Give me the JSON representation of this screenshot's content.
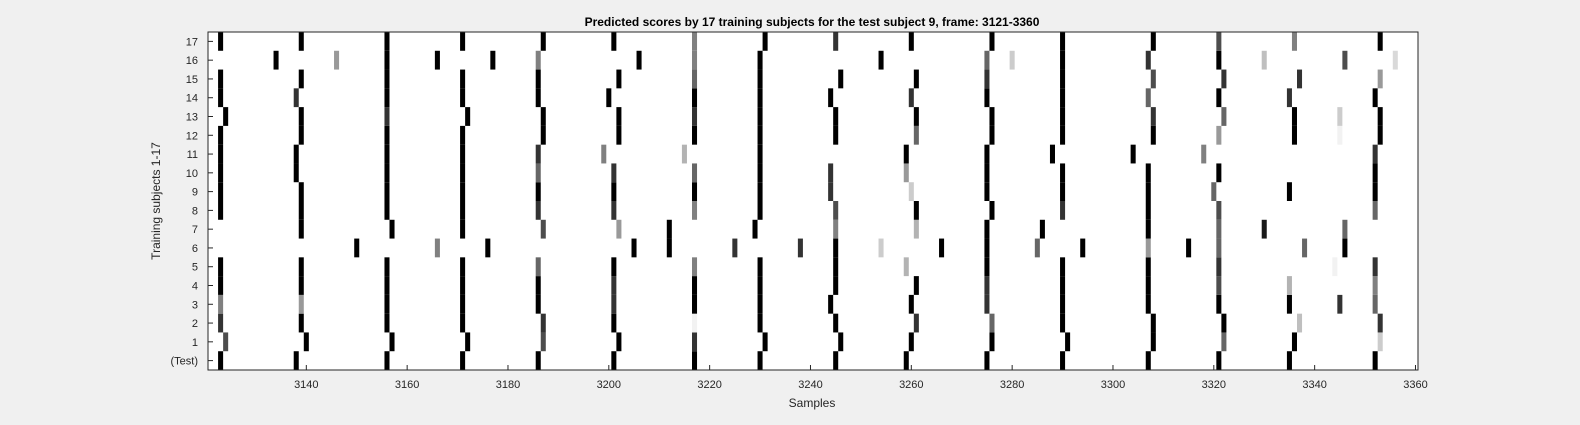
{
  "chart_data": {
    "type": "heatmap",
    "title": "Predicted scores by 17 training subjects for the test subject 9, frame: 3121-3360",
    "xlabel": "Samples",
    "ylabel": "Training subjects 1-17",
    "xlim": [
      3121,
      3360
    ],
    "xticks": [
      3140,
      3160,
      3180,
      3200,
      3220,
      3240,
      3260,
      3280,
      3300,
      3320,
      3340,
      3360
    ],
    "rows": [
      "(Test)",
      "1",
      "2",
      "3",
      "4",
      "5",
      "6",
      "7",
      "8",
      "9",
      "10",
      "11",
      "12",
      "13",
      "14",
      "15",
      "16",
      "17"
    ],
    "colormap": "gray (1 = black, 0 = white)",
    "grid": false,
    "cells": [
      {
        "row": "(Test)",
        "marks": [
          [
            3123,
            1
          ],
          [
            3138,
            1
          ],
          [
            3156,
            1
          ],
          [
            3171,
            1
          ],
          [
            3186,
            1
          ],
          [
            3201,
            1
          ],
          [
            3217,
            1
          ],
          [
            3230,
            1
          ],
          [
            3245,
            1
          ],
          [
            3259,
            1
          ],
          [
            3275,
            1
          ],
          [
            3290,
            1
          ],
          [
            3307,
            1
          ],
          [
            3321,
            1
          ],
          [
            3335,
            1
          ],
          [
            3352,
            1
          ]
        ]
      },
      {
        "row": "1",
        "marks": [
          [
            3124,
            0.7
          ],
          [
            3140,
            1
          ],
          [
            3157,
            1
          ],
          [
            3172,
            1
          ],
          [
            3187,
            0.7
          ],
          [
            3202,
            1
          ],
          [
            3217,
            0.8
          ],
          [
            3231,
            1
          ],
          [
            3246,
            1
          ],
          [
            3260,
            1
          ],
          [
            3276,
            1
          ],
          [
            3291,
            1
          ],
          [
            3308,
            1
          ],
          [
            3322,
            0.6
          ],
          [
            3336,
            1
          ],
          [
            3353,
            0.2
          ]
        ]
      },
      {
        "row": "2",
        "marks": [
          [
            3123,
            0.8
          ],
          [
            3139,
            1
          ],
          [
            3156,
            1
          ],
          [
            3171,
            1
          ],
          [
            3187,
            0.8
          ],
          [
            3201,
            1
          ],
          [
            3217,
            0.05
          ],
          [
            3230,
            1
          ],
          [
            3245,
            1
          ],
          [
            3261,
            0.8
          ],
          [
            3276,
            0.6
          ],
          [
            3290,
            1
          ],
          [
            3308,
            1
          ],
          [
            3322,
            1
          ],
          [
            3337,
            0.25
          ],
          [
            3353,
            0.8
          ]
        ]
      },
      {
        "row": "3",
        "marks": [
          [
            3123,
            0.5
          ],
          [
            3139,
            0.4
          ],
          [
            3156,
            1
          ],
          [
            3171,
            1
          ],
          [
            3186,
            1
          ],
          [
            3201,
            0.8
          ],
          [
            3217,
            1
          ],
          [
            3230,
            1
          ],
          [
            3244,
            1
          ],
          [
            3260,
            1
          ],
          [
            3275,
            0.8
          ],
          [
            3290,
            1
          ],
          [
            3307,
            1
          ],
          [
            3321,
            1
          ],
          [
            3335,
            1
          ],
          [
            3345,
            0.8
          ],
          [
            3352,
            0.6
          ]
        ]
      },
      {
        "row": "4",
        "marks": [
          [
            3123,
            1
          ],
          [
            3139,
            1
          ],
          [
            3156,
            1
          ],
          [
            3171,
            1
          ],
          [
            3186,
            1
          ],
          [
            3201,
            0.8
          ],
          [
            3217,
            1
          ],
          [
            3230,
            1
          ],
          [
            3245,
            1
          ],
          [
            3261,
            1
          ],
          [
            3275,
            0.8
          ],
          [
            3290,
            1
          ],
          [
            3307,
            1
          ],
          [
            3321,
            0.7
          ],
          [
            3335,
            0.3
          ],
          [
            3352,
            0.5
          ]
        ]
      },
      {
        "row": "5",
        "marks": [
          [
            3123,
            1
          ],
          [
            3139,
            1
          ],
          [
            3156,
            1
          ],
          [
            3171,
            1
          ],
          [
            3186,
            0.6
          ],
          [
            3201,
            1
          ],
          [
            3217,
            0.5
          ],
          [
            3230,
            1
          ],
          [
            3245,
            1
          ],
          [
            3259,
            0.3
          ],
          [
            3275,
            1
          ],
          [
            3290,
            1
          ],
          [
            3307,
            1
          ],
          [
            3321,
            0.8
          ],
          [
            3344,
            0.05
          ],
          [
            3352,
            0.8
          ]
        ]
      },
      {
        "row": "6",
        "marks": [
          [
            3150,
            1
          ],
          [
            3166,
            0.5
          ],
          [
            3176,
            1
          ],
          [
            3205,
            1
          ],
          [
            3212,
            1
          ],
          [
            3225,
            0.8
          ],
          [
            3238,
            0.8
          ],
          [
            3245,
            1
          ],
          [
            3254,
            0.2
          ],
          [
            3266,
            1
          ],
          [
            3275,
            1
          ],
          [
            3285,
            0.6
          ],
          [
            3294,
            1
          ],
          [
            3307,
            0.4
          ],
          [
            3315,
            1
          ],
          [
            3321,
            0.6
          ],
          [
            3338,
            0.6
          ],
          [
            3346,
            1
          ]
        ]
      },
      {
        "row": "7",
        "marks": [
          [
            3139,
            1
          ],
          [
            3157,
            1
          ],
          [
            3171,
            1
          ],
          [
            3187,
            0.7
          ],
          [
            3202,
            0.4
          ],
          [
            3212,
            1
          ],
          [
            3229,
            1
          ],
          [
            3245,
            0.5
          ],
          [
            3261,
            0.3
          ],
          [
            3275,
            1
          ],
          [
            3286,
            1
          ],
          [
            3307,
            1
          ],
          [
            3321,
            0.6
          ],
          [
            3330,
            0.9
          ],
          [
            3346,
            0.6
          ]
        ]
      },
      {
        "row": "8",
        "marks": [
          [
            3123,
            1
          ],
          [
            3139,
            1
          ],
          [
            3156,
            1
          ],
          [
            3171,
            1
          ],
          [
            3186,
            0.8
          ],
          [
            3201,
            0.8
          ],
          [
            3217,
            0.5
          ],
          [
            3230,
            1
          ],
          [
            3245,
            0.7
          ],
          [
            3261,
            1
          ],
          [
            3276,
            1
          ],
          [
            3290,
            0.8
          ],
          [
            3307,
            1
          ],
          [
            3321,
            0.7
          ],
          [
            3352,
            0.6
          ]
        ]
      },
      {
        "row": "9",
        "marks": [
          [
            3123,
            1
          ],
          [
            3139,
            1
          ],
          [
            3156,
            1
          ],
          [
            3171,
            1
          ],
          [
            3186,
            1
          ],
          [
            3201,
            1
          ],
          [
            3217,
            1
          ],
          [
            3230,
            1
          ],
          [
            3244,
            0.8
          ],
          [
            3260,
            0.2
          ],
          [
            3275,
            1
          ],
          [
            3290,
            1
          ],
          [
            3307,
            1
          ],
          [
            3320,
            0.6
          ],
          [
            3335,
            1
          ],
          [
            3352,
            1
          ]
        ]
      },
      {
        "row": "10",
        "marks": [
          [
            3123,
            1
          ],
          [
            3138,
            1
          ],
          [
            3156,
            1
          ],
          [
            3171,
            1
          ],
          [
            3186,
            0.6
          ],
          [
            3201,
            0.8
          ],
          [
            3217,
            0.6
          ],
          [
            3230,
            1
          ],
          [
            3244,
            0.8
          ],
          [
            3259,
            0.4
          ],
          [
            3275,
            1
          ],
          [
            3290,
            1
          ],
          [
            3307,
            1
          ],
          [
            3321,
            1
          ],
          [
            3352,
            1
          ]
        ]
      },
      {
        "row": "11",
        "marks": [
          [
            3123,
            1
          ],
          [
            3138,
            1
          ],
          [
            3156,
            1
          ],
          [
            3171,
            1
          ],
          [
            3186,
            0.8
          ],
          [
            3199,
            0.5
          ],
          [
            3215,
            0.3
          ],
          [
            3230,
            1
          ],
          [
            3259,
            1
          ],
          [
            3275,
            1
          ],
          [
            3288,
            1
          ],
          [
            3304,
            1
          ],
          [
            3318,
            0.5
          ],
          [
            3352,
            0.8
          ]
        ]
      },
      {
        "row": "12",
        "marks": [
          [
            3123,
            1
          ],
          [
            3139,
            1
          ],
          [
            3156,
            1
          ],
          [
            3171,
            1
          ],
          [
            3187,
            1
          ],
          [
            3202,
            1
          ],
          [
            3217,
            1
          ],
          [
            3230,
            1
          ],
          [
            3245,
            1
          ],
          [
            3261,
            0.6
          ],
          [
            3276,
            1
          ],
          [
            3290,
            1
          ],
          [
            3308,
            1
          ],
          [
            3321,
            0.4
          ],
          [
            3336,
            1
          ],
          [
            3345,
            0.05
          ],
          [
            3353,
            1
          ]
        ]
      },
      {
        "row": "13",
        "marks": [
          [
            3124,
            1
          ],
          [
            3139,
            1
          ],
          [
            3156,
            0.8
          ],
          [
            3172,
            1
          ],
          [
            3187,
            1
          ],
          [
            3202,
            1
          ],
          [
            3217,
            0.8
          ],
          [
            3230,
            1
          ],
          [
            3245,
            1
          ],
          [
            3261,
            1
          ],
          [
            3276,
            1
          ],
          [
            3290,
            1
          ],
          [
            3308,
            0.8
          ],
          [
            3322,
            0.6
          ],
          [
            3336,
            1
          ],
          [
            3345,
            0.2
          ],
          [
            3353,
            1
          ]
        ]
      },
      {
        "row": "14",
        "marks": [
          [
            3123,
            1
          ],
          [
            3138,
            0.8
          ],
          [
            3156,
            1
          ],
          [
            3171,
            1
          ],
          [
            3186,
            1
          ],
          [
            3200,
            1
          ],
          [
            3217,
            1
          ],
          [
            3230,
            1
          ],
          [
            3244,
            1
          ],
          [
            3260,
            0.8
          ],
          [
            3275,
            1
          ],
          [
            3290,
            1
          ],
          [
            3307,
            0.6
          ],
          [
            3321,
            1
          ],
          [
            3335,
            0.8
          ],
          [
            3352,
            1
          ]
        ]
      },
      {
        "row": "15",
        "marks": [
          [
            3123,
            1
          ],
          [
            3139,
            1
          ],
          [
            3156,
            1
          ],
          [
            3171,
            1
          ],
          [
            3186,
            1
          ],
          [
            3202,
            1
          ],
          [
            3217,
            0.6
          ],
          [
            3230,
            1
          ],
          [
            3246,
            1
          ],
          [
            3261,
            1
          ],
          [
            3275,
            0.8
          ],
          [
            3290,
            1
          ],
          [
            3308,
            0.7
          ],
          [
            3322,
            0.8
          ],
          [
            3337,
            0.8
          ],
          [
            3353,
            0.4
          ]
        ]
      },
      {
        "row": "16",
        "marks": [
          [
            3134,
            1
          ],
          [
            3146,
            0.4
          ],
          [
            3156,
            1
          ],
          [
            3166,
            1
          ],
          [
            3177,
            1
          ],
          [
            3186,
            0.5
          ],
          [
            3206,
            1
          ],
          [
            3217,
            0.5
          ],
          [
            3230,
            1
          ],
          [
            3254,
            1
          ],
          [
            3275,
            0.6
          ],
          [
            3280,
            0.2
          ],
          [
            3290,
            1
          ],
          [
            3307,
            0.8
          ],
          [
            3321,
            1
          ],
          [
            3330,
            0.25
          ],
          [
            3346,
            0.7
          ],
          [
            3356,
            0.15
          ]
        ]
      },
      {
        "row": "17",
        "marks": [
          [
            3123,
            1
          ],
          [
            3139,
            1
          ],
          [
            3156,
            1
          ],
          [
            3171,
            1
          ],
          [
            3187,
            1
          ],
          [
            3201,
            1
          ],
          [
            3217,
            0.5
          ],
          [
            3231,
            1
          ],
          [
            3245,
            0.8
          ],
          [
            3260,
            1
          ],
          [
            3276,
            1
          ],
          [
            3290,
            1
          ],
          [
            3308,
            1
          ],
          [
            3321,
            0.7
          ],
          [
            3336,
            0.5
          ],
          [
            3353,
            1
          ]
        ]
      }
    ]
  }
}
